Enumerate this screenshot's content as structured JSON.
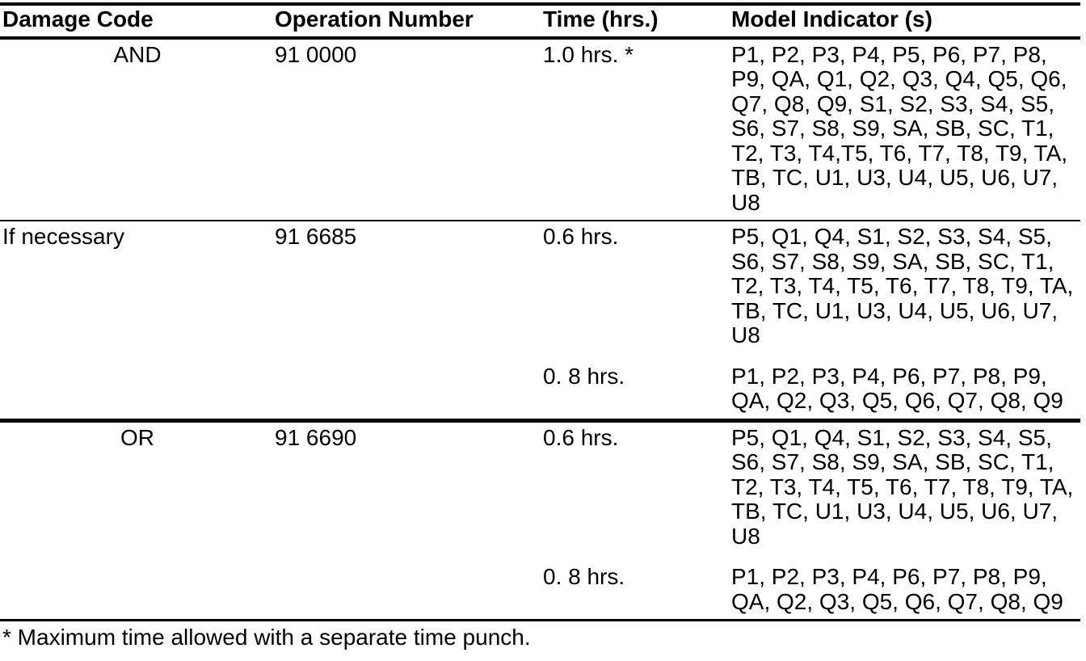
{
  "table": {
    "headers": {
      "damage_code": "Damage Code",
      "operation_number": "Operation Number",
      "time": "Time (hrs.)",
      "model_indicator": "Model Indicator (s)"
    },
    "rows": [
      {
        "damage_code": "AND",
        "operation_number": "91 0000",
        "blocks": [
          {
            "time": "1.0 hrs. *",
            "indicators": "P1, P2, P3, P4, P5, P6, P7, P8,\nP9, QA, Q1, Q2, Q3, Q4, Q5, Q6,\nQ7, Q8, Q9, S1, S2, S3, S4, S5,\nS6, S7, S8, S9, SA, SB, SC, T1,\nT2, T3, T4,T5, T6, T7, T8, T9, TA,\nTB, TC, U1, U3, U4, U5, U6, U7,\nU8"
          }
        ]
      },
      {
        "damage_code": "If necessary",
        "operation_number": "91 6685",
        "blocks": [
          {
            "time": "0.6 hrs.",
            "indicators": "P5, Q1, Q4, S1, S2, S3, S4, S5,\nS6, S7, S8, S9, SA, SB, SC, T1,\nT2, T3, T4, T5, T6, T7, T8, T9, TA,\nTB, TC, U1, U3, U4, U5, U6, U7,\nU8"
          },
          {
            "time": "0. 8 hrs.",
            "indicators": "P1, P2, P3, P4, P6, P7, P8, P9,\nQA, Q2, Q3, Q5, Q6, Q7, Q8, Q9"
          }
        ]
      },
      {
        "damage_code": "OR",
        "operation_number": "91 6690",
        "blocks": [
          {
            "time": "0.6 hrs.",
            "indicators": "P5, Q1, Q4, S1, S2, S3, S4, S5,\nS6, S7, S8, S9, SA, SB, SC, T1,\nT2, T3, T4, T5, T6, T7, T8, T9, TA,\nTB, TC, U1, U3, U4, U5, U6, U7,\nU8"
          },
          {
            "time": "0. 8 hrs.",
            "indicators": "P1, P2, P3, P4, P6, P7, P8, P9,\nQA, Q2, Q3, Q5, Q6, Q7, Q8, Q9"
          }
        ]
      }
    ],
    "footnote": "* Maximum time allowed with a separate time punch."
  }
}
